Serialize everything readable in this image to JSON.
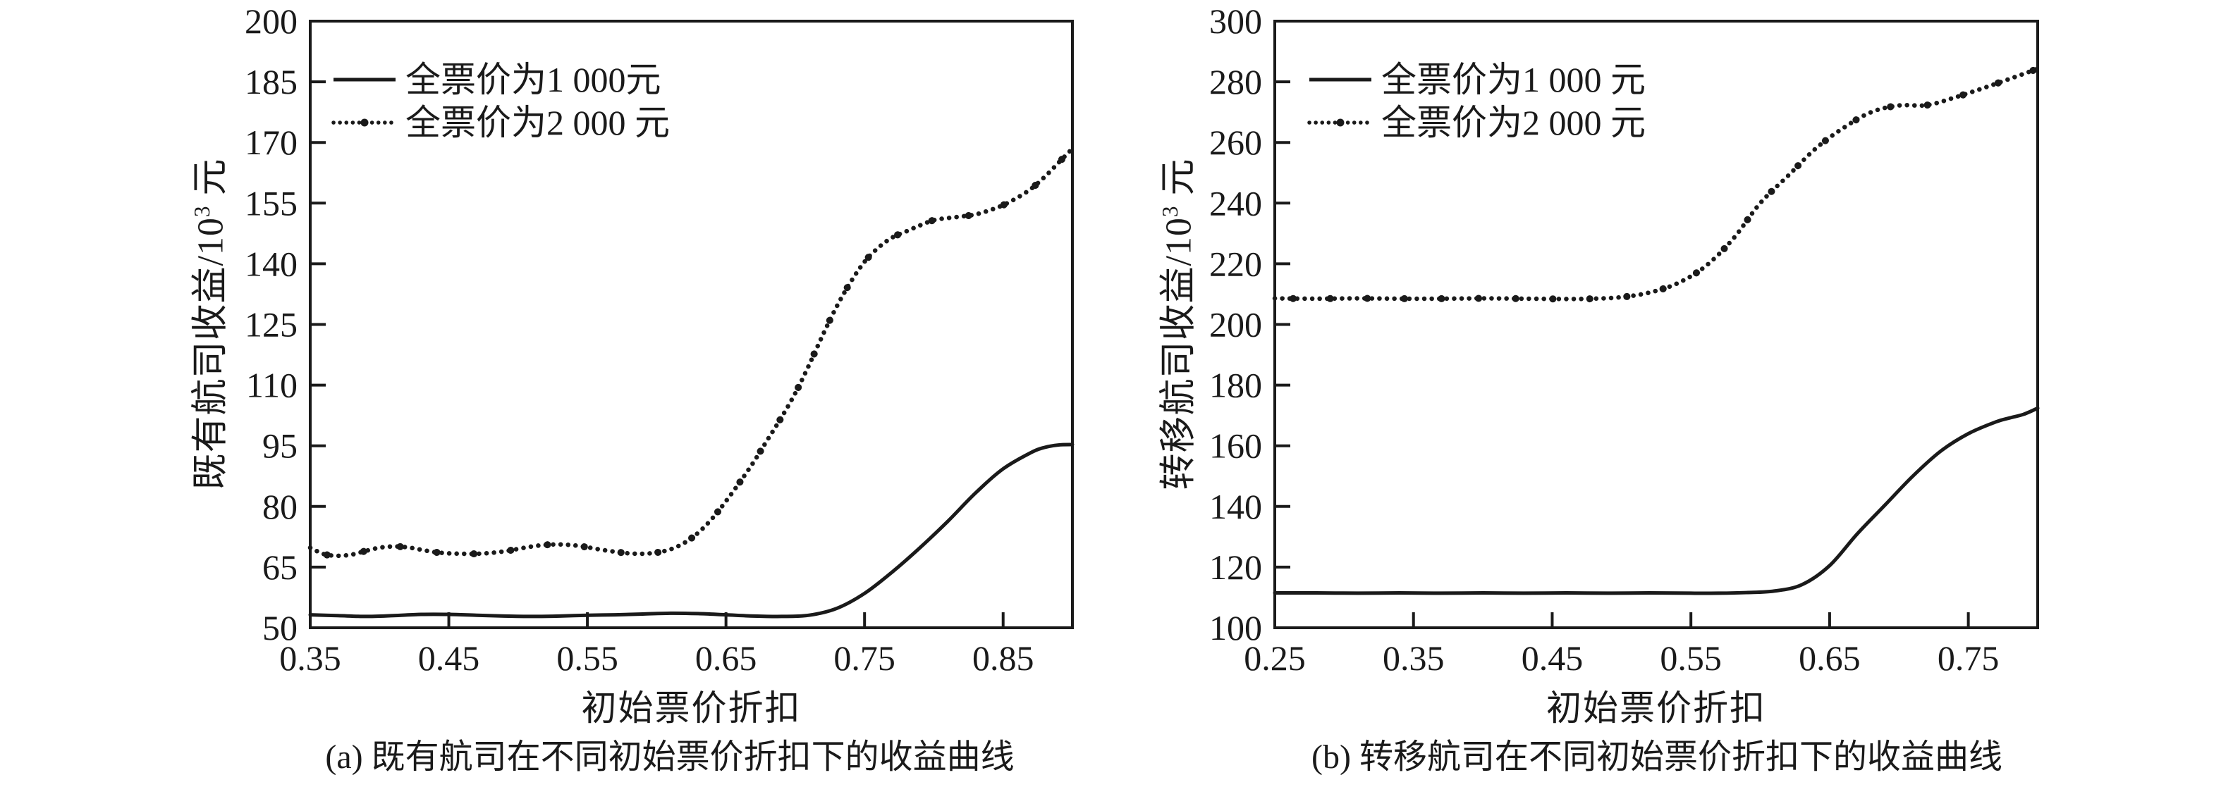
{
  "colors": {
    "ink": "#1a1a1a",
    "background": "#ffffff"
  },
  "chart_data": [
    {
      "id": "a",
      "type": "line",
      "caption": "(a) 既有航司在不同初始票价折扣下的收益曲线",
      "xlabel": "初始票价折扣",
      "ylabel": "既有航司收益/10³ 元",
      "ylabel_prefix": "既有航司收益/10",
      "ylabel_sup": "3",
      "ylabel_suffix": " 元",
      "xlim": [
        0.35,
        0.9
      ],
      "ylim": [
        50,
        200
      ],
      "x_tick_values": [
        0.35,
        0.45,
        0.55,
        0.65,
        0.75,
        0.85
      ],
      "x_tick_labels": [
        "0.35",
        "0.45",
        "0.55",
        "0.65",
        "0.75",
        "0.85"
      ],
      "y_tick_values": [
        50,
        65,
        80,
        95,
        110,
        125,
        140,
        155,
        170,
        185,
        200
      ],
      "y_tick_labels": [
        "50",
        "65",
        "80",
        "95",
        "110",
        "125",
        "140",
        "155",
        "170",
        "185",
        "200"
      ],
      "grid": false,
      "legend_position": "top-left-inside",
      "series": [
        {
          "name": "全票价为1 000元",
          "style": "solid",
          "points": [
            [
              0.35,
              53.2
            ],
            [
              0.37,
              53.0
            ],
            [
              0.39,
              52.8
            ],
            [
              0.41,
              53.0
            ],
            [
              0.43,
              53.3
            ],
            [
              0.45,
              53.3
            ],
            [
              0.47,
              53.1
            ],
            [
              0.49,
              52.9
            ],
            [
              0.51,
              52.8
            ],
            [
              0.53,
              52.9
            ],
            [
              0.55,
              53.1
            ],
            [
              0.57,
              53.2
            ],
            [
              0.59,
              53.4
            ],
            [
              0.61,
              53.6
            ],
            [
              0.63,
              53.5
            ],
            [
              0.65,
              53.2
            ],
            [
              0.67,
              52.9
            ],
            [
              0.69,
              52.8
            ],
            [
              0.71,
              53.1
            ],
            [
              0.73,
              54.8
            ],
            [
              0.75,
              58.5
            ],
            [
              0.77,
              63.8
            ],
            [
              0.79,
              69.8
            ],
            [
              0.81,
              76.3
            ],
            [
              0.83,
              83.3
            ],
            [
              0.85,
              89.3
            ],
            [
              0.87,
              93.3
            ],
            [
              0.88,
              94.6
            ],
            [
              0.89,
              95.2
            ],
            [
              0.9,
              95.3
            ]
          ]
        },
        {
          "name": "全票价为2 000 元",
          "style": "dotted",
          "points": [
            [
              0.35,
              69.8
            ],
            [
              0.36,
              68.2
            ],
            [
              0.37,
              67.8
            ],
            [
              0.38,
              68.1
            ],
            [
              0.39,
              69.0
            ],
            [
              0.4,
              69.8
            ],
            [
              0.41,
              70.1
            ],
            [
              0.42,
              69.9
            ],
            [
              0.43,
              69.3
            ],
            [
              0.44,
              68.7
            ],
            [
              0.45,
              68.4
            ],
            [
              0.46,
              68.3
            ],
            [
              0.47,
              68.3
            ],
            [
              0.48,
              68.5
            ],
            [
              0.49,
              68.9
            ],
            [
              0.5,
              69.5
            ],
            [
              0.51,
              70.1
            ],
            [
              0.52,
              70.5
            ],
            [
              0.53,
              70.6
            ],
            [
              0.54,
              70.4
            ],
            [
              0.55,
              69.9
            ],
            [
              0.56,
              69.3
            ],
            [
              0.57,
              68.8
            ],
            [
              0.58,
              68.4
            ],
            [
              0.59,
              68.3
            ],
            [
              0.6,
              68.6
            ],
            [
              0.61,
              69.4
            ],
            [
              0.62,
              71.0
            ],
            [
              0.63,
              73.5
            ],
            [
              0.64,
              77.0
            ],
            [
              0.65,
              81.3
            ],
            [
              0.66,
              86.0
            ],
            [
              0.67,
              91.0
            ],
            [
              0.68,
              96.5
            ],
            [
              0.69,
              102.0
            ],
            [
              0.7,
              108.0
            ],
            [
              0.71,
              115.0
            ],
            [
              0.72,
              122.5
            ],
            [
              0.73,
              129.5
            ],
            [
              0.74,
              135.5
            ],
            [
              0.75,
              140.5
            ],
            [
              0.76,
              144.0
            ],
            [
              0.77,
              146.5
            ],
            [
              0.78,
              148.0
            ],
            [
              0.79,
              149.5
            ],
            [
              0.8,
              150.8
            ],
            [
              0.81,
              151.3
            ],
            [
              0.82,
              151.7
            ],
            [
              0.83,
              152.2
            ],
            [
              0.84,
              153.2
            ],
            [
              0.85,
              154.5
            ],
            [
              0.86,
              156.3
            ],
            [
              0.87,
              158.5
            ],
            [
              0.88,
              161.5
            ],
            [
              0.89,
              165.0
            ],
            [
              0.9,
              168.5
            ]
          ]
        }
      ]
    },
    {
      "id": "b",
      "type": "line",
      "caption": "(b) 转移航司在不同初始票价折扣下的收益曲线",
      "xlabel": "初始票价折扣",
      "ylabel": "转移航司收益/10³ 元",
      "ylabel_prefix": "转移航司收益/10",
      "ylabel_sup": "3",
      "ylabel_suffix": " 元",
      "xlim": [
        0.25,
        0.8
      ],
      "ylim": [
        100,
        300
      ],
      "x_tick_values": [
        0.25,
        0.35,
        0.45,
        0.55,
        0.65,
        0.75
      ],
      "x_tick_labels": [
        "0.25",
        "0.35",
        "0.45",
        "0.55",
        "0.65",
        "0.75"
      ],
      "y_tick_values": [
        100,
        120,
        140,
        160,
        180,
        200,
        220,
        240,
        260,
        280,
        300
      ],
      "y_tick_labels": [
        "100",
        "120",
        "140",
        "160",
        "180",
        "200",
        "220",
        "240",
        "260",
        "280",
        "300"
      ],
      "grid": false,
      "legend_position": "top-left-inside",
      "series": [
        {
          "name": "全票价为1 000 元",
          "style": "solid",
          "points": [
            [
              0.25,
              111.5
            ],
            [
              0.28,
              111.5
            ],
            [
              0.31,
              111.4
            ],
            [
              0.34,
              111.5
            ],
            [
              0.37,
              111.4
            ],
            [
              0.4,
              111.5
            ],
            [
              0.43,
              111.4
            ],
            [
              0.46,
              111.5
            ],
            [
              0.49,
              111.4
            ],
            [
              0.52,
              111.5
            ],
            [
              0.55,
              111.4
            ],
            [
              0.57,
              111.4
            ],
            [
              0.59,
              111.6
            ],
            [
              0.61,
              112.1
            ],
            [
              0.63,
              114.2
            ],
            [
              0.65,
              120.5
            ],
            [
              0.67,
              131.0
            ],
            [
              0.69,
              140.5
            ],
            [
              0.71,
              150.0
            ],
            [
              0.73,
              158.2
            ],
            [
              0.75,
              164.0
            ],
            [
              0.77,
              167.9
            ],
            [
              0.78,
              169.2
            ],
            [
              0.79,
              170.4
            ],
            [
              0.8,
              172.4
            ]
          ]
        },
        {
          "name": "全票价为2 000 元",
          "style": "dotted",
          "points": [
            [
              0.25,
              208.6
            ],
            [
              0.28,
              208.5
            ],
            [
              0.31,
              208.6
            ],
            [
              0.34,
              208.5
            ],
            [
              0.37,
              208.5
            ],
            [
              0.4,
              208.6
            ],
            [
              0.43,
              208.5
            ],
            [
              0.46,
              208.4
            ],
            [
              0.48,
              208.5
            ],
            [
              0.5,
              209.0
            ],
            [
              0.52,
              210.5
            ],
            [
              0.54,
              213.5
            ],
            [
              0.56,
              219.0
            ],
            [
              0.58,
              228.0
            ],
            [
              0.6,
              240.0
            ],
            [
              0.62,
              249.0
            ],
            [
              0.64,
              258.0
            ],
            [
              0.66,
              264.8
            ],
            [
              0.68,
              270.0
            ],
            [
              0.7,
              272.2
            ],
            [
              0.72,
              272.3
            ],
            [
              0.74,
              274.8
            ],
            [
              0.76,
              277.8
            ],
            [
              0.78,
              281.0
            ],
            [
              0.8,
              284.3
            ]
          ]
        }
      ]
    }
  ]
}
